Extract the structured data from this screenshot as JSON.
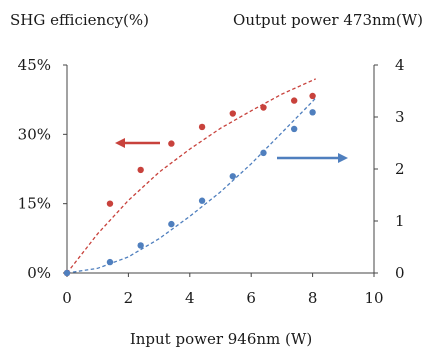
{
  "chart_data": {
    "type": "scatter",
    "xlabel": "Input power 946nm (W)",
    "ylabel_left": "SHG efficiency(%)",
    "ylabel_right": "Output power 473nm(W)",
    "xlim": [
      0,
      10
    ],
    "ylim_left": [
      0,
      45
    ],
    "ylim_right": [
      0,
      4
    ],
    "x_ticks": [
      "0",
      "2",
      "4",
      "6",
      "8",
      "10"
    ],
    "y_left_ticks": [
      "0%",
      "15%",
      "30%",
      "45%"
    ],
    "y_right_ticks": [
      "0",
      "1",
      "2",
      "3",
      "4"
    ],
    "grid": false,
    "series": [
      {
        "axis": "left",
        "color": "#c8423c",
        "points": [
          {
            "x": 0,
            "y": 0
          },
          {
            "x": 1.4,
            "y": 15.0
          },
          {
            "x": 2.4,
            "y": 22.3
          },
          {
            "x": 3.4,
            "y": 28.0
          },
          {
            "x": 4.4,
            "y": 31.6
          },
          {
            "x": 5.4,
            "y": 34.5
          },
          {
            "x": 6.4,
            "y": 35.8
          },
          {
            "x": 7.4,
            "y": 37.3
          },
          {
            "x": 8.0,
            "y": 38.3
          }
        ],
        "fit": [
          {
            "x": 0,
            "y": 0
          },
          {
            "x": 1,
            "y": 8.5
          },
          {
            "x": 2,
            "y": 15.7
          },
          {
            "x": 3,
            "y": 21.8
          },
          {
            "x": 4,
            "y": 26.8
          },
          {
            "x": 5,
            "y": 31.3
          },
          {
            "x": 6,
            "y": 35.1
          },
          {
            "x": 7,
            "y": 38.7
          },
          {
            "x": 8,
            "y": 41.7
          },
          {
            "x": 8.1,
            "y": 42.0
          }
        ]
      },
      {
        "axis": "right",
        "color": "#4f7fbe",
        "points": [
          {
            "x": 0,
            "y": 0
          },
          {
            "x": 1.4,
            "y": 0.21
          },
          {
            "x": 2.4,
            "y": 0.53
          },
          {
            "x": 3.4,
            "y": 0.94
          },
          {
            "x": 4.4,
            "y": 1.39
          },
          {
            "x": 5.4,
            "y": 1.86
          },
          {
            "x": 6.4,
            "y": 2.31
          },
          {
            "x": 7.4,
            "y": 2.77
          },
          {
            "x": 8.0,
            "y": 3.09
          }
        ],
        "fit": [
          {
            "x": 0,
            "y": 0
          },
          {
            "x": 1,
            "y": 0.09
          },
          {
            "x": 2,
            "y": 0.31
          },
          {
            "x": 3,
            "y": 0.66
          },
          {
            "x": 4,
            "y": 1.09
          },
          {
            "x": 5,
            "y": 1.56
          },
          {
            "x": 6,
            "y": 2.1
          },
          {
            "x": 7,
            "y": 2.7
          },
          {
            "x": 8,
            "y": 3.3
          },
          {
            "x": 8.1,
            "y": 3.37
          }
        ]
      }
    ],
    "annotations": [
      {
        "shape": "arrow",
        "direction": "left",
        "points_to_axis": "left",
        "color": "#c8423c"
      },
      {
        "shape": "arrow",
        "direction": "right",
        "points_to_axis": "right",
        "color": "#4f7fbe"
      }
    ]
  }
}
